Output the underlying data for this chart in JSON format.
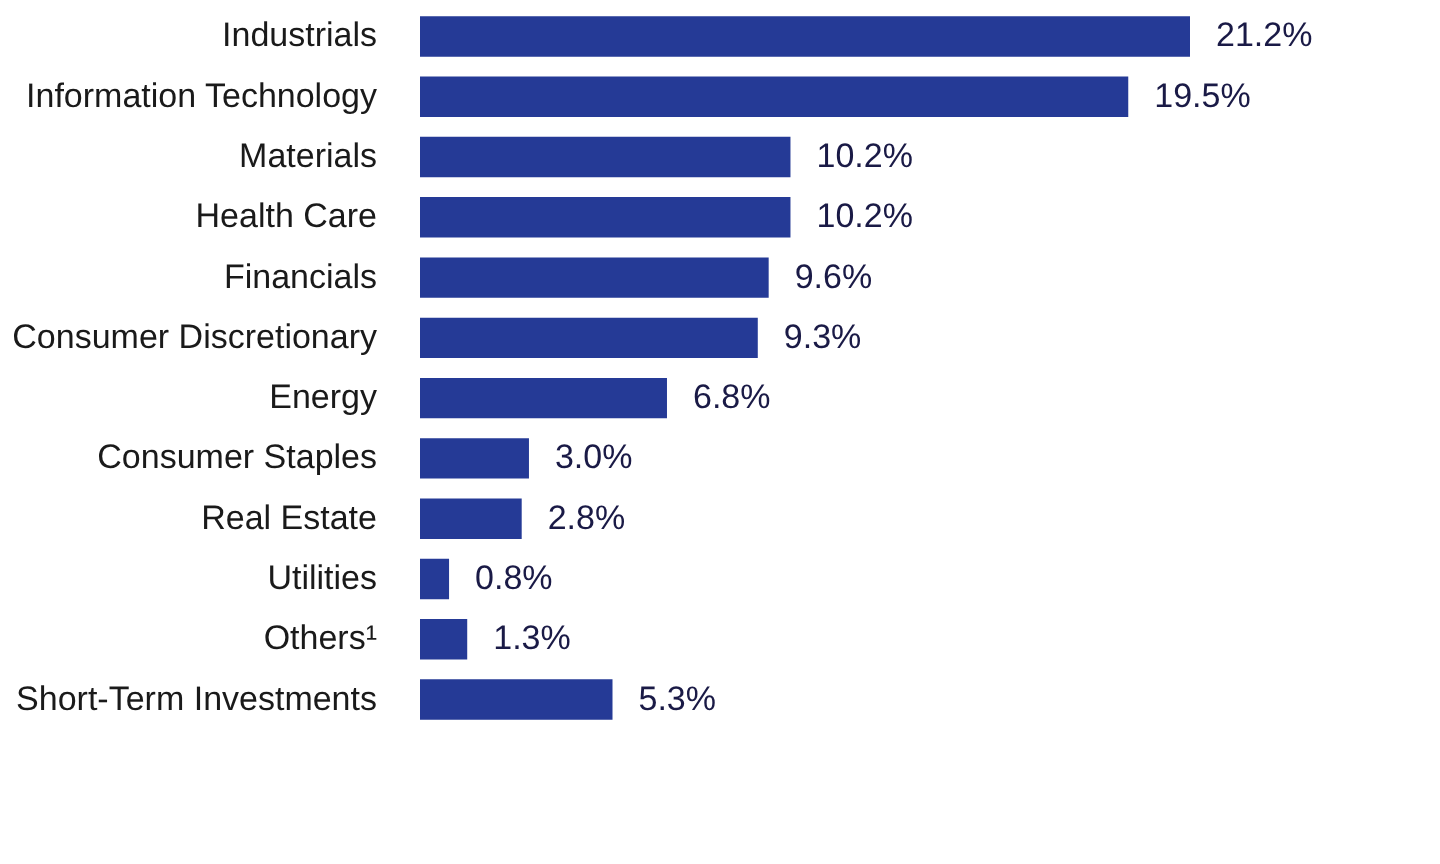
{
  "chart_data": {
    "type": "bar",
    "orientation": "horizontal",
    "categories": [
      "Industrials",
      "Information Technology",
      "Materials",
      "Health Care",
      "Financials",
      "Consumer Discretionary",
      "Energy",
      "Consumer Staples",
      "Real Estate",
      "Utilities",
      "Others¹",
      "Short-Term Investments"
    ],
    "values": [
      21.2,
      19.5,
      10.2,
      10.2,
      9.6,
      9.3,
      6.8,
      3.0,
      2.8,
      0.8,
      1.3,
      5.3
    ],
    "value_labels": [
      "21.2%",
      "19.5%",
      "10.2%",
      "10.2%",
      "9.6%",
      "9.3%",
      "6.8%",
      "3.0%",
      "2.8%",
      "0.8%",
      "1.3%",
      "5.3%"
    ],
    "color": "#253a96",
    "tick_labels": "y"
  }
}
